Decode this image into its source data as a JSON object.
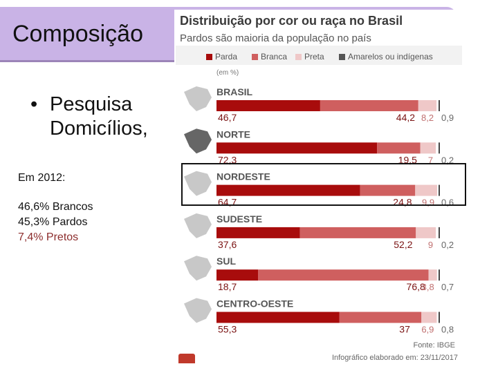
{
  "slide": {
    "title": "Composição",
    "bullet_line1": "Pesquisa",
    "bullet_line2": "Domicílios,",
    "note_year": "Em 2012:",
    "note_lines": [
      "46,6% Brancos",
      "45,3% Pardos",
      "7,4% Pretos"
    ]
  },
  "infographic": {
    "title": "Distribuição por cor ou raça no Brasil",
    "subtitle": "Pardos são maioria da população no país",
    "unit": "(em %)",
    "source": "Fonte: IBGE",
    "footer": "Infográfico elaborado em: 23/11/2017"
  },
  "colors": {
    "parda": "#a80c0c",
    "branca": "#cf5f5f",
    "preta": "#efc8c8",
    "amarelos": "#555555",
    "title_banner": "#c9b3e6"
  },
  "chart_data": {
    "type": "bar",
    "orientation": "horizontal",
    "stacked": true,
    "title": "Distribuição por cor ou raça no Brasil",
    "subtitle": "Pardos são maioria da população no país",
    "unit": "(em %)",
    "legend_position": "top",
    "categories": [
      "BRASIL",
      "NORTE",
      "NORDESTE",
      "SUDESTE",
      "SUL",
      "CENTRO-OESTE"
    ],
    "series": [
      {
        "name": "Parda",
        "values": [
          46.7,
          72.3,
          64.7,
          37.6,
          18.7,
          55.3
        ],
        "labels": [
          "46,7",
          "72,3",
          "64,7",
          "37,6",
          "18,7",
          "55,3"
        ]
      },
      {
        "name": "Branca",
        "values": [
          44.2,
          19.5,
          24.8,
          52.2,
          76.8,
          37
        ],
        "labels": [
          "44,2",
          "19,5",
          "24,8",
          "52,2",
          "76,8",
          "37"
        ]
      },
      {
        "name": "Preta",
        "values": [
          8.2,
          7,
          9.9,
          9,
          3.8,
          6.9
        ],
        "labels": [
          "8,2",
          "7",
          "9,9",
          "9",
          "3,8",
          "6,9"
        ]
      },
      {
        "name": "Amarelos ou indígenas",
        "values": [
          0.9,
          0.2,
          0.6,
          0.2,
          0.7,
          0.8
        ],
        "labels": [
          "0,9",
          "0,2",
          "0,6",
          "0,2",
          "0,7",
          "0,8"
        ]
      }
    ],
    "xlim": [
      0,
      100
    ],
    "highlighted_category": "NORDESTE"
  }
}
